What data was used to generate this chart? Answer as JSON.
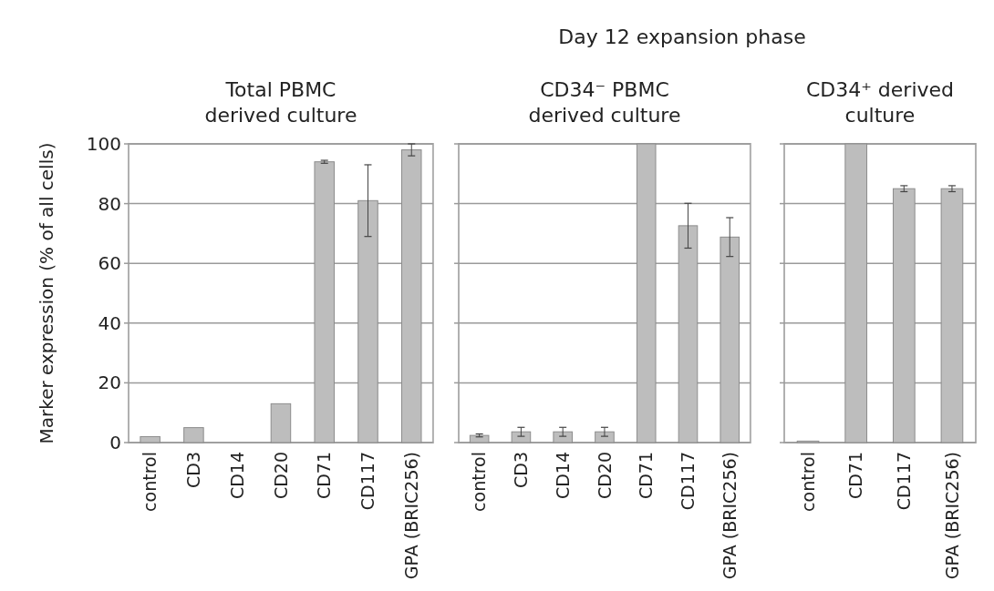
{
  "chart_data": [
    {
      "type": "bar",
      "title": "Total PBMC\nderived culture",
      "ylabel": "Marker expression (% of all cells)",
      "annotations": [
        "Day 12 expansion phase"
      ],
      "categories": [
        "control",
        "CD3",
        "CD14",
        "CD20",
        "CD71",
        "CD117",
        "GPA (BRIC256)"
      ],
      "series": [
        {
          "color": "#bdbdbd",
          "values": [
            2,
            5,
            0,
            13,
            94,
            81,
            98
          ],
          "errors": [
            null,
            null,
            null,
            null,
            0.5,
            12,
            2
          ]
        }
      ],
      "ylim": [
        0,
        100
      ],
      "yticks": [
        0,
        20,
        40,
        60,
        80,
        100
      ],
      "grid": "y"
    },
    {
      "type": "bar",
      "title": "CD34⁻ PBMC\nderived culture",
      "categories": [
        "control",
        "CD3",
        "CD14",
        "CD20",
        "CD71",
        "CD117",
        "GPA (BRIC256)"
      ],
      "series": [
        {
          "color": "#bdbdbd",
          "values": [
            2.4,
            3.6,
            3.6,
            3.6,
            100,
            72.6,
            68.8
          ],
          "errors": [
            0.5,
            1.5,
            1.5,
            1.5,
            null,
            7.5,
            6.5
          ]
        }
      ],
      "ylim": [
        0,
        100
      ],
      "yticks": [
        0,
        20,
        40,
        60,
        80,
        100
      ],
      "grid": "y",
      "tick_labels": "x"
    },
    {
      "type": "bar",
      "title": "CD34⁺ derived\nculture",
      "categories": [
        "control",
        "CD71",
        "CD117",
        "GPA (BRIC256)"
      ],
      "series": [
        {
          "color": "#bdbdbd",
          "values": [
            0.5,
            100,
            85,
            85
          ],
          "errors": [
            null,
            null,
            1,
            1
          ]
        }
      ],
      "ylim": [
        0,
        100
      ],
      "yticks": [
        0,
        20,
        40,
        60,
        80,
        100
      ],
      "grid": "y",
      "tick_labels": "x"
    }
  ]
}
